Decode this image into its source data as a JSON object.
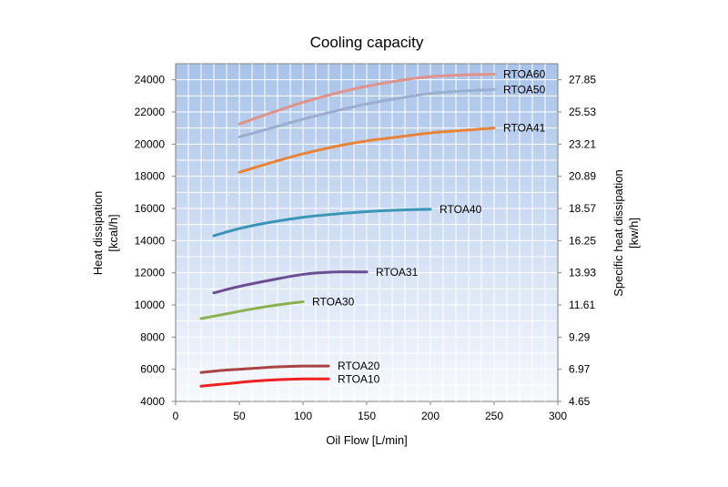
{
  "chart_data": {
    "type": "line",
    "title": "Cooling capacity",
    "xlabel": "Oil Flow [L/min]",
    "ylabel_lines": [
      "Heat dissipation",
      "[kcal/h]"
    ],
    "y2label_lines": [
      "Specific heat dissipation",
      "[kw/h]"
    ],
    "xlim": [
      0,
      300
    ],
    "ylim": [
      4000,
      25000
    ],
    "x_ticks": [
      0,
      50,
      100,
      150,
      200,
      250,
      300
    ],
    "y_ticks": [
      4000,
      6000,
      8000,
      10000,
      12000,
      14000,
      16000,
      18000,
      20000,
      22000,
      24000
    ],
    "y2_ticks": [
      "4.65",
      "6.97",
      "9.29",
      "11.61",
      "13.93",
      "16.25",
      "18.57",
      "20.89",
      "23.21",
      "25.53",
      "27.85"
    ],
    "grid": true,
    "series": [
      {
        "name": "RTOA60",
        "color": "#e0938a",
        "x": [
          50,
          75,
          100,
          125,
          150,
          175,
          200,
          225,
          250
        ],
        "y": [
          21250,
          21950,
          22600,
          23150,
          23600,
          23950,
          24200,
          24300,
          24350
        ]
      },
      {
        "name": "RTOA50",
        "color": "#9aaed0",
        "x": [
          50,
          75,
          100,
          125,
          150,
          175,
          200,
          225,
          250
        ],
        "y": [
          20450,
          21000,
          21550,
          22050,
          22500,
          22850,
          23150,
          23300,
          23400
        ]
      },
      {
        "name": "RTOA41",
        "color": "#e8843a",
        "x": [
          50,
          75,
          100,
          125,
          150,
          175,
          200,
          225,
          250
        ],
        "y": [
          18250,
          18850,
          19400,
          19850,
          20200,
          20450,
          20700,
          20850,
          21000
        ]
      },
      {
        "name": "RTOA40",
        "color": "#3a96b4",
        "x": [
          30,
          50,
          75,
          100,
          125,
          150,
          175,
          200
        ],
        "y": [
          14300,
          14750,
          15150,
          15450,
          15650,
          15800,
          15900,
          15950
        ]
      },
      {
        "name": "RTOA31",
        "color": "#6a4f91",
        "x": [
          30,
          50,
          75,
          100,
          125,
          150
        ],
        "y": [
          10750,
          11150,
          11550,
          11900,
          12050,
          12050
        ]
      },
      {
        "name": "RTOA30",
        "color": "#8cb050",
        "x": [
          20,
          40,
          60,
          80,
          100
        ],
        "y": [
          9150,
          9450,
          9750,
          10000,
          10200
        ]
      },
      {
        "name": "RTOA20",
        "color": "#a84444",
        "x": [
          20,
          40,
          60,
          80,
          100,
          120
        ],
        "y": [
          5800,
          5950,
          6050,
          6150,
          6200,
          6200
        ]
      },
      {
        "name": "RTOA10",
        "color": "#ee2020",
        "x": [
          20,
          40,
          60,
          80,
          100,
          120
        ],
        "y": [
          4950,
          5100,
          5250,
          5350,
          5400,
          5400
        ]
      }
    ]
  }
}
